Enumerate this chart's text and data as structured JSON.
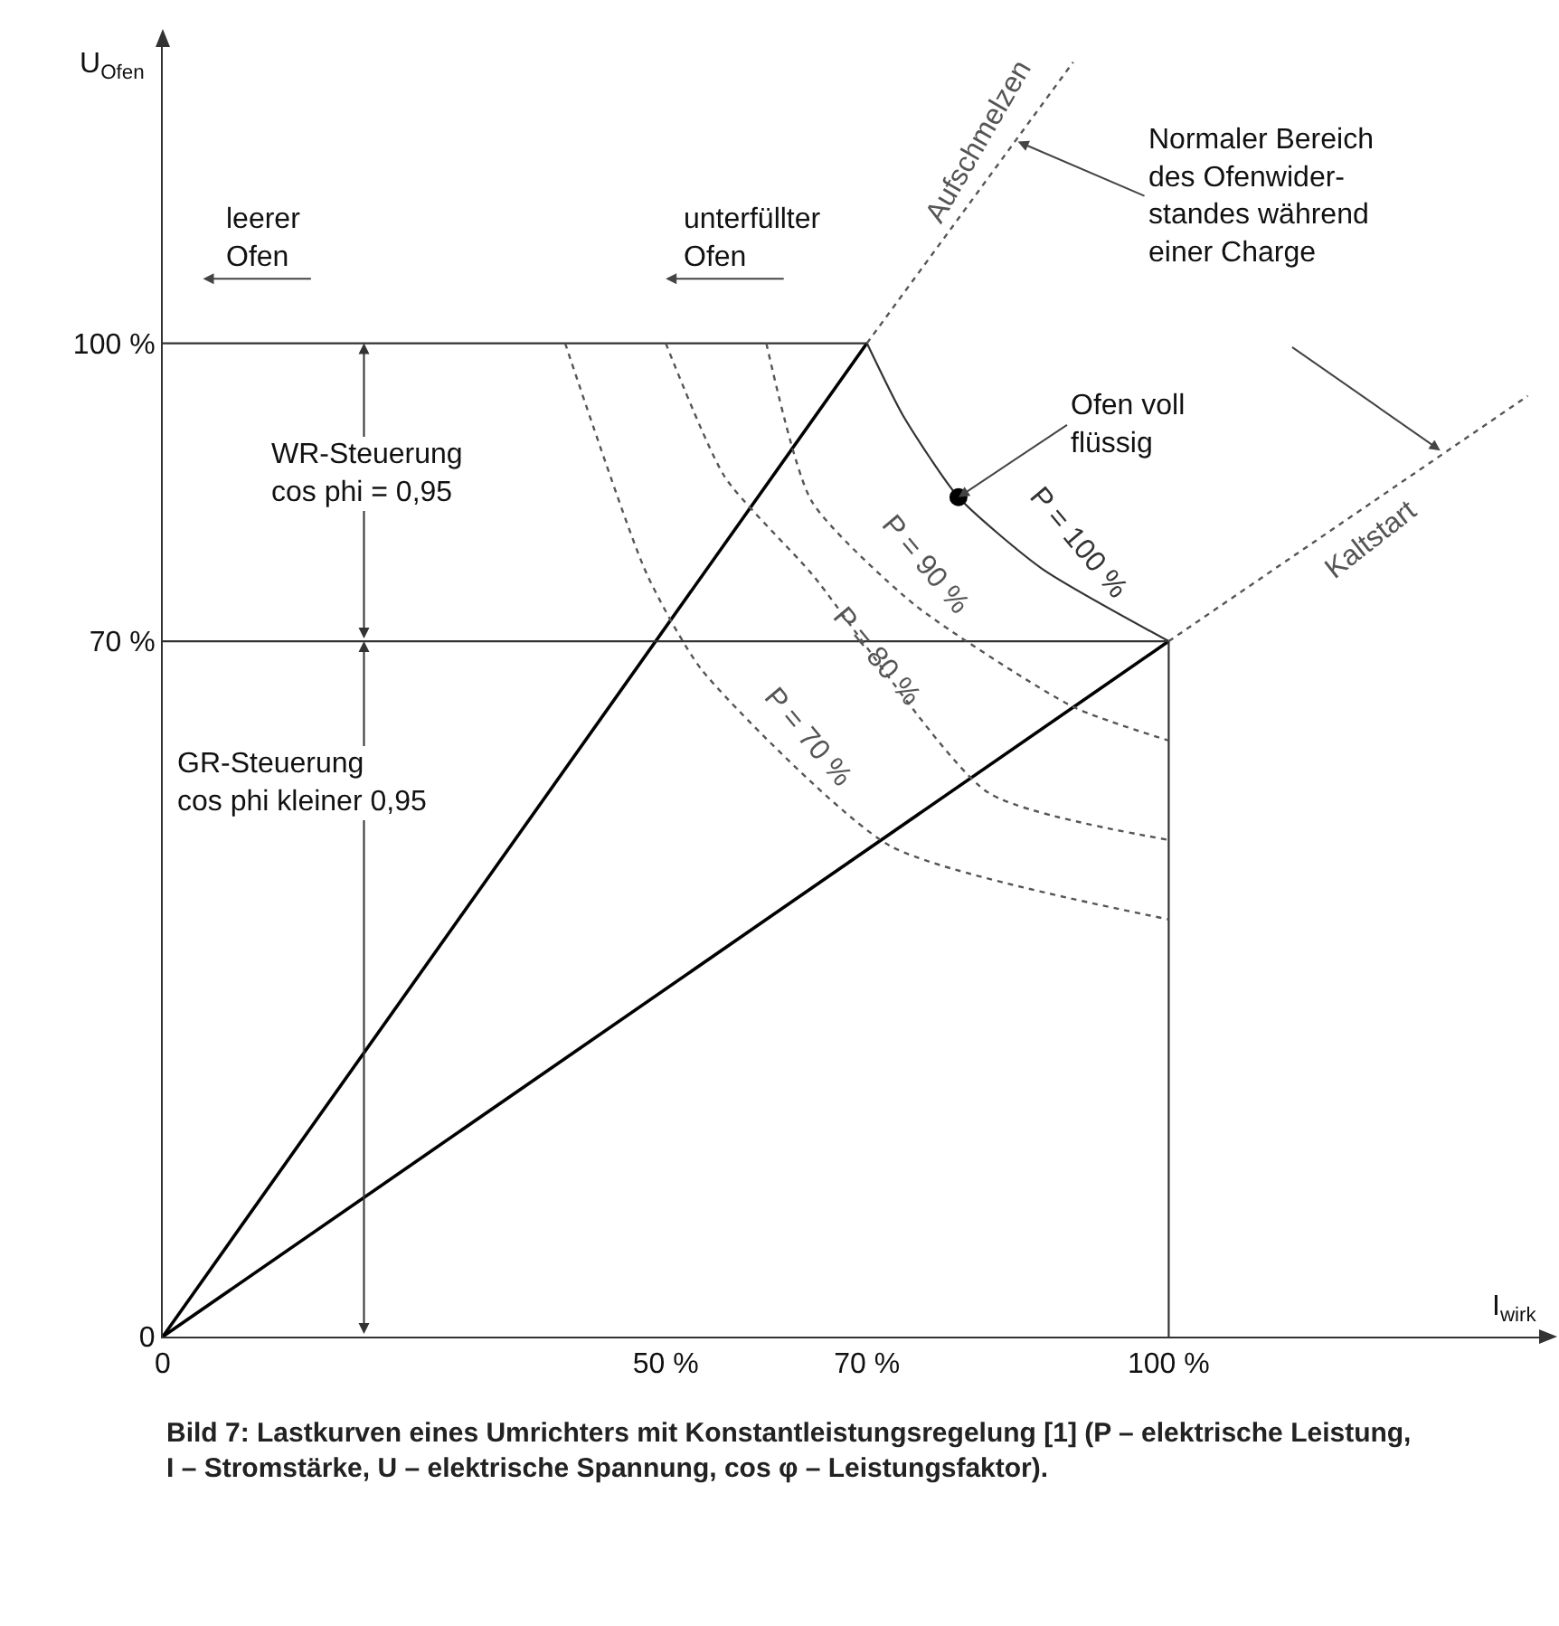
{
  "chart_data": {
    "type": "line",
    "xlabel": "I$_{wirk}$",
    "ylabel": "U$_{Ofen}$",
    "xlim": [
      0,
      137
    ],
    "ylim": [
      0,
      130
    ],
    "xticks": [
      0,
      {
        "value": 50,
        "label": "50 %"
      },
      {
        "value": 70,
        "label": "70 %"
      },
      {
        "value": 100,
        "label": "100 %"
      }
    ],
    "yticks": [
      0,
      {
        "value": 70,
        "label": "70 %"
      },
      {
        "value": 100,
        "label": "100 %"
      }
    ],
    "grid": false,
    "legend": false,
    "series": [
      {
        "color": "#000000",
        "line_style": "solid",
        "x": [
          0,
          70
        ],
        "values": [
          0,
          100
        ]
      },
      {
        "color": "#000000",
        "line_style": "solid",
        "x": [
          0,
          100
        ],
        "values": [
          0,
          70
        ]
      },
      {
        "color": "#333333",
        "line_style": "solid",
        "x": [
          0,
          70
        ],
        "values": [
          100,
          100
        ]
      },
      {
        "color": "#333333",
        "line_style": "solid",
        "x": [
          0,
          100
        ],
        "values": [
          70,
          70
        ]
      },
      {
        "color": "#333333",
        "line_style": "solid",
        "x": [
          100,
          100
        ],
        "values": [
          0,
          70
        ]
      },
      {
        "name": "P = 100 %",
        "color": "#333333",
        "line_style": "solid",
        "x": [
          70,
          73.6,
          79.1,
          87.4,
          100
        ],
        "values": [
          100,
          92.7,
          84.5,
          77.3,
          70
        ]
      },
      {
        "name": "P = 90 %",
        "color": "#555555",
        "line_style": "dotted",
        "x": [
          60,
          64.5,
          74.7,
          90.5,
          100
        ],
        "values": [
          100,
          84.1,
          73.7,
          63.4,
          60
        ]
      },
      {
        "name": "P = 80 %",
        "color": "#555555",
        "line_style": "dotted",
        "x": [
          50,
          55.9,
          64.5,
          82,
          100
        ],
        "values": [
          100,
          86.5,
          76.8,
          54.8,
          50
        ]
      },
      {
        "name": "P = 70 %",
        "color": "#555555",
        "line_style": "dotted",
        "x": [
          40,
          48.1,
          53.6,
          72.3,
          100
        ],
        "values": [
          100,
          76.8,
          67.1,
          49.4,
          42
        ]
      },
      {
        "name": "Aufschmelzen",
        "color": "#555555",
        "line_style": "dotted",
        "x": [
          70,
          90.5
        ],
        "values": [
          100,
          128.3
        ]
      },
      {
        "name": "Kaltstart",
        "color": "#555555",
        "line_style": "dotted",
        "x": [
          100,
          135.7
        ],
        "values": [
          70,
          94.7
        ]
      },
      {
        "type": "scatter",
        "marker": "circle",
        "color": "#000000",
        "x": [
          79.1
        ],
        "values": [
          84.5
        ]
      }
    ],
    "annotations": [
      "leerer\nOfen",
      "unterfüllter\nOfen",
      "WR-Steuerung\ncos phi = 0,95",
      "GR-Steuerung\ncos phi kleiner 0,95",
      {
        "text": "Normaler Bereich\ndes Ofenwider-\nstandes während\neiner Charge",
        "x": 85,
        "y": 120.3
      },
      {
        "text": "Ofen voll\nflüssig",
        "x": 79.1,
        "y": 84.5
      },
      "Bild 7: Lastkurven eines Umrichters mit Konstantleistungsregelung [1] (P – elektrische Leistung,\nI – Stromstärke, U – elektrische Spannung, cos φ – Leistungsfaktor)."
    ]
  }
}
